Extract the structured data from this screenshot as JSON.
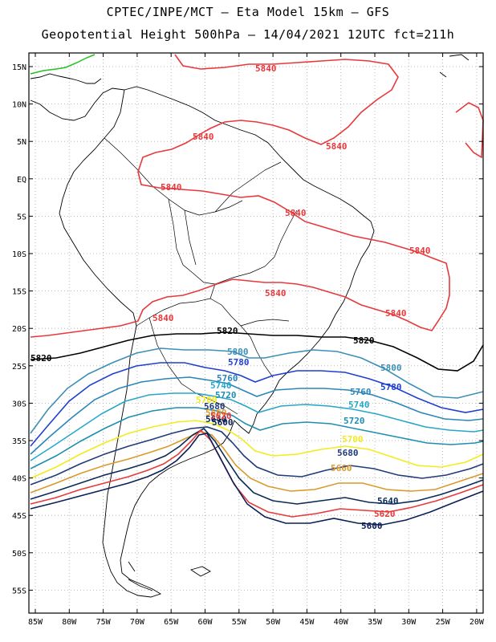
{
  "header": {
    "title_line1": "CPTEC/INPE/MCT –  Eta Model 15km – GFS",
    "title_line2": "Geopotential Height 500hPa – 14/04/2021 12UTC fct=211h"
  },
  "map": {
    "lat_labels": [
      "15N",
      "10N",
      "5N",
      "EQ",
      "5S",
      "10S",
      "15S",
      "20S",
      "25S",
      "30S",
      "35S",
      "40S",
      "45S",
      "50S",
      "55S"
    ],
    "lon_labels": [
      "85W",
      "80W",
      "75W",
      "70W",
      "65W",
      "60W",
      "55W",
      "50W",
      "45W",
      "40W",
      "35W",
      "30W",
      "25W",
      "20W"
    ],
    "contours": [
      {
        "level": "5840",
        "color": "#e8383b"
      },
      {
        "level": "5820",
        "color": "#000000"
      },
      {
        "level": "5800",
        "color": "#3c8fb6"
      },
      {
        "level": "5780",
        "color": "#1e3fd0"
      },
      {
        "level": "5760",
        "color": "#2b86b8"
      },
      {
        "level": "5740",
        "color": "#27a7c8"
      },
      {
        "level": "5720",
        "color": "#1e8fb0"
      },
      {
        "level": "5700",
        "color": "#f2ec1c"
      },
      {
        "level": "5680",
        "color": "#1f3b78"
      },
      {
        "level": "5660",
        "color": "#d99a2a"
      },
      {
        "level": "5640",
        "color": "#0a2a56"
      },
      {
        "level": "5620",
        "color": "#e83a3a"
      },
      {
        "level": "5600",
        "color": "#0b1f57"
      }
    ],
    "contour_labels": {
      "l5840a": "5840",
      "l5840b": "5840",
      "l5840c": "5840",
      "l5840d": "5840",
      "l5840e": "5840",
      "l5840f": "5840",
      "l5840g": "5840",
      "l5840h": "5840",
      "l5840i": "5840",
      "l5820a": "5820",
      "l5820b": "5820",
      "l5820c": "5820",
      "l5800a": "5800",
      "l5800b": "5800",
      "l5780a": "5780",
      "l5780b": "5780",
      "l5760a": "5760",
      "l5760b": "5760",
      "l5740a": "5740",
      "l5740b": "5740",
      "l5720a": "5720",
      "l5720b": "5720",
      "l5700a": "5700",
      "l5700b": "5700",
      "l5680a": "5680",
      "l5680b": "5680",
      "l5660a": "5660",
      "l5660b": "5660",
      "l5640a": "5640",
      "l5640b": "5640",
      "l5620a": "5620",
      "l5620b": "5620",
      "l5600a": "5600",
      "l5600b": "5600"
    }
  }
}
